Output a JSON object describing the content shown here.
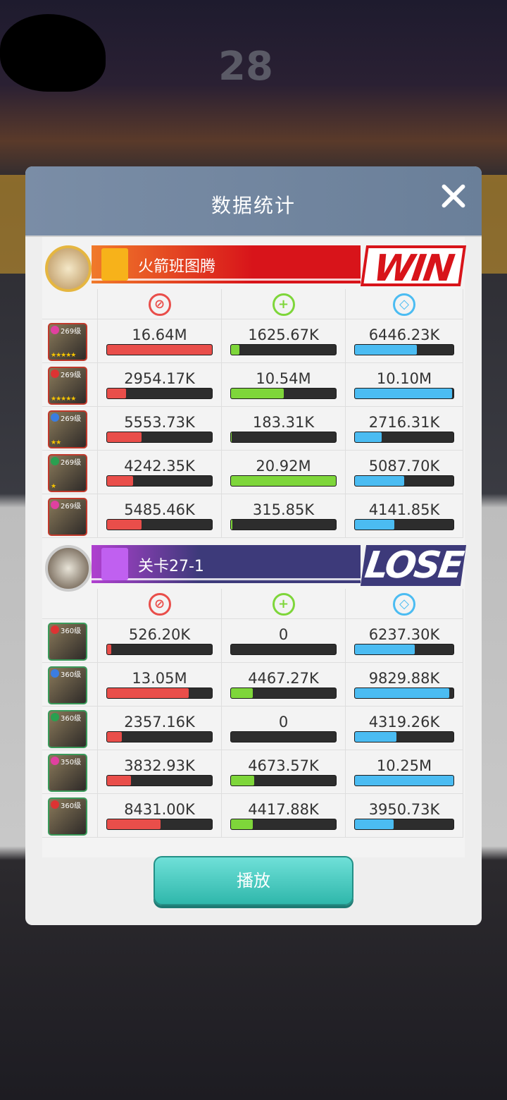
{
  "title": "数据统计",
  "play_label": "播放",
  "colors": {
    "damage": "#e94e4a",
    "heal": "#7ed63a",
    "defense": "#4bbcf2",
    "win": "#d8141a",
    "lose": "#3d3a7a"
  },
  "stat_icons": [
    "sword-icon",
    "plus-icon",
    "shield-icon"
  ],
  "teams": [
    {
      "name": "火箭班图腾",
      "result": "WIN",
      "heroes": [
        {
          "level": "269级",
          "stars": "★★★★★",
          "stats": [
            [
              "16.64M",
              1.0
            ],
            [
              "1625.67K",
              0.08
            ],
            [
              "6446.23K",
              0.63
            ]
          ]
        },
        {
          "level": "269级",
          "stars": "★★★★★",
          "stats": [
            [
              "2954.17K",
              0.18
            ],
            [
              "10.54M",
              0.5
            ],
            [
              "10.10M",
              0.985
            ]
          ]
        },
        {
          "level": "269级",
          "stars": "★★",
          "stats": [
            [
              "5553.73K",
              0.33
            ],
            [
              "183.31K",
              0.01
            ],
            [
              "2716.31K",
              0.27
            ]
          ]
        },
        {
          "level": "269级",
          "stars": "★",
          "stats": [
            [
              "4242.35K",
              0.25
            ],
            [
              "20.92M",
              1.0
            ],
            [
              "5087.70K",
              0.5
            ]
          ]
        },
        {
          "level": "269级",
          "stars": "",
          "stats": [
            [
              "5485.46K",
              0.33
            ],
            [
              "315.85K",
              0.015
            ],
            [
              "4141.85K",
              0.4
            ]
          ]
        }
      ]
    },
    {
      "name": "关卡27-1",
      "result": "LOSE",
      "heroes": [
        {
          "level": "360级",
          "stars": "",
          "stats": [
            [
              "526.20K",
              0.04
            ],
            [
              "0",
              0
            ],
            [
              "6237.30K",
              0.61
            ]
          ]
        },
        {
          "level": "360级",
          "stars": "",
          "stats": [
            [
              "13.05M",
              0.78
            ],
            [
              "4467.27K",
              0.21
            ],
            [
              "9829.88K",
              0.96
            ]
          ]
        },
        {
          "level": "360级",
          "stars": "",
          "stats": [
            [
              "2357.16K",
              0.14
            ],
            [
              "0",
              0
            ],
            [
              "4319.26K",
              0.42
            ]
          ]
        },
        {
          "level": "350级",
          "stars": "",
          "stats": [
            [
              "3832.93K",
              0.23
            ],
            [
              "4673.57K",
              0.22
            ],
            [
              "10.25M",
              1.0
            ]
          ]
        },
        {
          "level": "360级",
          "stars": "",
          "stats": [
            [
              "8431.00K",
              0.51
            ],
            [
              "4417.88K",
              0.21
            ],
            [
              "3950.73K",
              0.39
            ]
          ]
        }
      ]
    }
  ]
}
